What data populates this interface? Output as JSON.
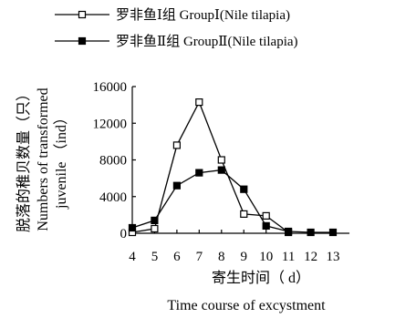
{
  "chart_data": {
    "type": "line",
    "x": [
      4,
      5,
      6,
      7,
      8,
      9,
      10,
      11,
      12,
      13
    ],
    "xlabel_cn": "寄生时间（ d）",
    "xlabel_en": "Time course of excystment",
    "ylabel_cn": "脱落的稚贝数量（只）",
    "ylabel_en_line1": "Numbers of transformed",
    "ylabel_en_line2": "juvenile （ind）",
    "ylim": [
      0,
      16000
    ],
    "yticks": [
      0,
      4000,
      8000,
      12000,
      16000
    ],
    "legend_position": "top-left",
    "series": [
      {
        "name": "罗非鱼Ⅰ组 GroupⅠ(Nile tilapia)",
        "marker": "open-square",
        "values": [
          100,
          500,
          9600,
          14300,
          8000,
          2100,
          1900,
          100,
          null,
          null
        ]
      },
      {
        "name": "罗非鱼Ⅱ组 GroupⅡ(Nile tilapia)",
        "marker": "filled-square",
        "values": [
          600,
          1400,
          5200,
          6600,
          6900,
          4800,
          800,
          200,
          100,
          100
        ]
      }
    ],
    "color": "#000000"
  }
}
